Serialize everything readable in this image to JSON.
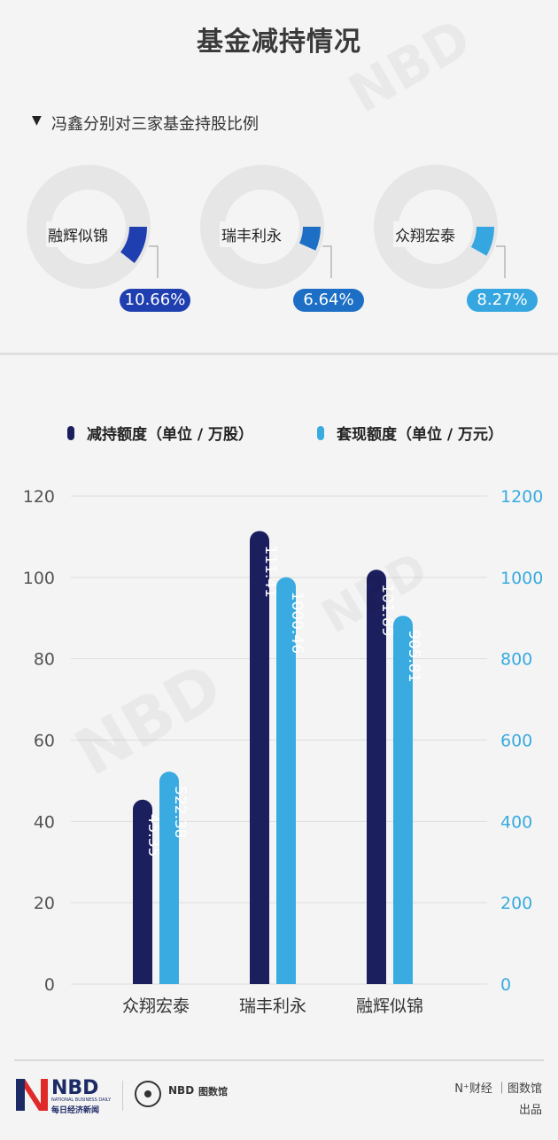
{
  "title": "基金减持情况",
  "subtitle": "冯鑫分别对三家基金持股比例",
  "donuts": [
    {
      "name": "融辉似锦",
      "pct_label": "10.66%",
      "value": 10.66,
      "color": "#1f3fb0"
    },
    {
      "name": "瑞丰利永",
      "pct_label": "6.64%",
      "value": 6.64,
      "color": "#1c6fc4"
    },
    {
      "name": "众翔宏泰",
      "pct_label": "8.27%",
      "value": 8.27,
      "color": "#36a6e0"
    }
  ],
  "legend": {
    "series1": "减持额度（单位 / 万股）",
    "series2": "套现额度（单位 / 万元）"
  },
  "colors": {
    "series1": "#1c1f5e",
    "series2": "#39abe0",
    "left_axis": "#555555",
    "right_axis": "#39abe0"
  },
  "chart_data": {
    "type": "bar",
    "categories": [
      "众翔宏泰",
      "瑞丰利永",
      "融辉似锦"
    ],
    "series": [
      {
        "name": "减持额度（单位 / 万股）",
        "axis": "left",
        "values": [
          45.35,
          111.41,
          101.89
        ],
        "labels": [
          "45.35",
          "111.41",
          "101.89"
        ]
      },
      {
        "name": "套现额度（单位 / 万元）",
        "axis": "right",
        "values": [
          522.38,
          1000.46,
          905.81
        ],
        "labels": [
          "522.38",
          "1000.46",
          "905.81"
        ]
      }
    ],
    "ylim_left": [
      0,
      120
    ],
    "ylim_right": [
      0,
      1200
    ],
    "yticks_left": [
      "0",
      "20",
      "40",
      "60",
      "80",
      "100",
      "120"
    ],
    "yticks_right": [
      "0",
      "200",
      "400",
      "600",
      "800",
      "1000",
      "1200"
    ],
    "grid": true
  },
  "footer": {
    "brand": "NBD",
    "brand_sub": "每日经济新闻",
    "brand_tiny": "NATIONAL BUSINESS DAILY",
    "logo2": "NBD",
    "logo2_sub": "图数馆",
    "credit_line1": "N⁺财经 ｜图数馆",
    "credit_line2": "出品"
  }
}
